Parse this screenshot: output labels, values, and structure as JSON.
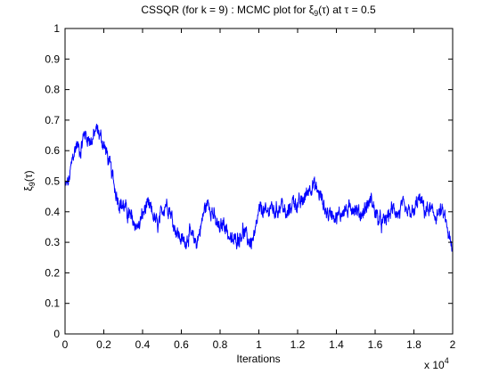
{
  "chart_data": {
    "type": "line",
    "title": "CSSQR (for k = 9) : MCMC plot for ξ_9(τ) at τ = 0.5",
    "title_prefix": "CSSQR (for k = 9) : MCMC plot for ",
    "title_symbol": "ξ",
    "title_sub": "9",
    "title_suffix": "(τ) at τ = 0.5",
    "xlabel": "Iterations",
    "ylabel": "ξ_9 (τ)",
    "ylabel_symbol": "ξ",
    "ylabel_sub": "9",
    "ylabel_suffix": "(τ)",
    "x_multiplier": "x 10",
    "x_multiplier_exp": "4",
    "xlim": [
      0,
      20000
    ],
    "ylim": [
      0,
      1
    ],
    "xticks": [
      0,
      2000,
      4000,
      6000,
      8000,
      10000,
      12000,
      14000,
      16000,
      18000,
      20000
    ],
    "xtick_labels": [
      "0",
      "0.2",
      "0.4",
      "0.6",
      "0.8",
      "1",
      "1.2",
      "1.4",
      "1.6",
      "1.8",
      "2"
    ],
    "yticks": [
      0,
      0.1,
      0.2,
      0.3,
      0.4,
      0.5,
      0.6,
      0.7,
      0.8,
      0.9,
      1
    ],
    "ytick_labels": [
      "0",
      "0.1",
      "0.2",
      "0.3",
      "0.4",
      "0.5",
      "0.6",
      "0.7",
      "0.8",
      "0.9",
      "1"
    ],
    "grid": false,
    "line_color": "#0000ff",
    "series": [
      {
        "x": [
          0,
          200,
          400,
          600,
          800,
          1000,
          1200,
          1400,
          1600,
          1800,
          2000,
          2200,
          2400,
          2600,
          2800,
          3000,
          3200,
          3400,
          3600,
          3800,
          4000,
          4200,
          4400,
          4600,
          4800,
          5000,
          5200,
          5400,
          5600,
          5800,
          6000,
          6200,
          6400,
          6600,
          6800,
          7000,
          7200,
          7400,
          7600,
          7800,
          8000,
          8200,
          8400,
          8600,
          8800,
          9000,
          9200,
          9400,
          9600,
          9800,
          10000,
          10200,
          10400,
          10600,
          10800,
          11000,
          11200,
          11400,
          11600,
          11800,
          12000,
          12200,
          12400,
          12600,
          12800,
          13000,
          13200,
          13400,
          13600,
          13800,
          14000,
          14200,
          14400,
          14600,
          14800,
          15000,
          15200,
          15400,
          15600,
          15800,
          16000,
          16200,
          16400,
          16600,
          16800,
          17000,
          17200,
          17400,
          17600,
          17800,
          18000,
          18200,
          18400,
          18600,
          18800,
          19000,
          19200,
          19400,
          19600,
          19800,
          20000
        ],
        "values": [
          0.48,
          0.5,
          0.58,
          0.62,
          0.6,
          0.66,
          0.64,
          0.63,
          0.67,
          0.65,
          0.62,
          0.58,
          0.53,
          0.47,
          0.43,
          0.42,
          0.4,
          0.38,
          0.36,
          0.35,
          0.39,
          0.42,
          0.41,
          0.38,
          0.35,
          0.4,
          0.43,
          0.41,
          0.36,
          0.33,
          0.31,
          0.3,
          0.33,
          0.31,
          0.3,
          0.35,
          0.41,
          0.43,
          0.4,
          0.36,
          0.34,
          0.37,
          0.33,
          0.3,
          0.31,
          0.32,
          0.34,
          0.31,
          0.3,
          0.32,
          0.4,
          0.41,
          0.39,
          0.42,
          0.4,
          0.41,
          0.43,
          0.38,
          0.41,
          0.44,
          0.42,
          0.43,
          0.45,
          0.48,
          0.49,
          0.47,
          0.45,
          0.41,
          0.39,
          0.4,
          0.38,
          0.39,
          0.41,
          0.4,
          0.42,
          0.41,
          0.39,
          0.4,
          0.42,
          0.44,
          0.4,
          0.37,
          0.36,
          0.38,
          0.4,
          0.41,
          0.39,
          0.42,
          0.39,
          0.4,
          0.39,
          0.44,
          0.43,
          0.4,
          0.41,
          0.39,
          0.39,
          0.4,
          0.38,
          0.32,
          0.26
        ]
      }
    ]
  }
}
